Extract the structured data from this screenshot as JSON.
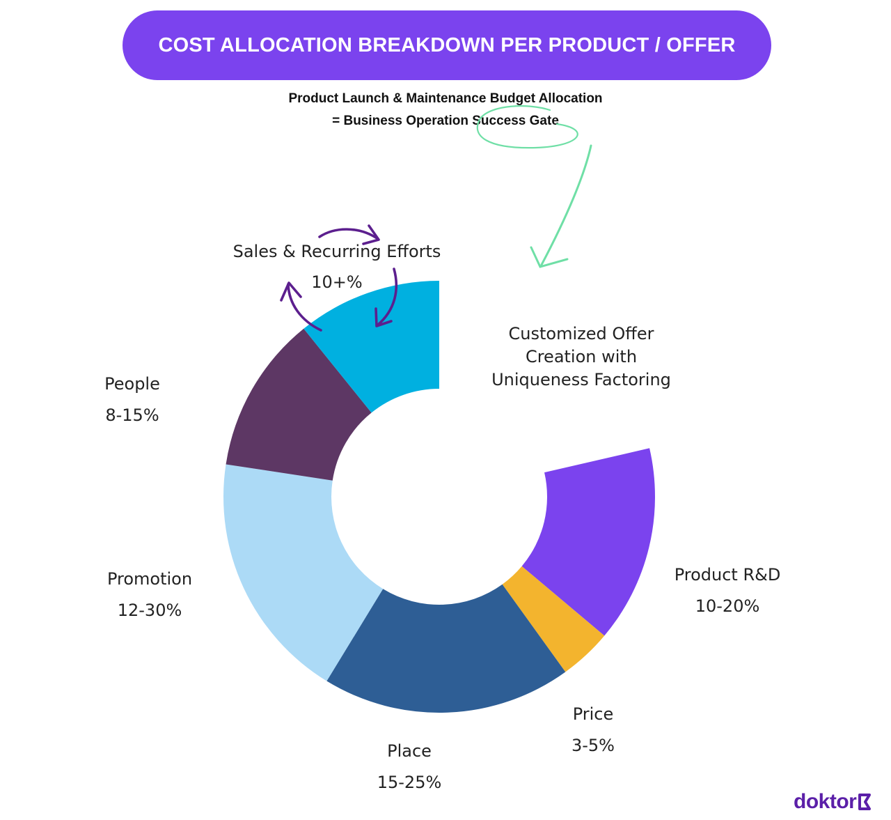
{
  "banner": {
    "title": "COST ALLOCATION BREAKDOWN PER PRODUCT / OFFER",
    "color": "#7b43ee"
  },
  "subtitle": {
    "line1": "Product Launch & Maintenance Budget Allocation",
    "line2": "= Business Operation Success Gate"
  },
  "center_label": {
    "line1": "Customized Offer",
    "line2": "Creation with",
    "line3": "Uniqueness Factoring"
  },
  "annotation_color": "#6fdfa6",
  "arrow_color": "#5c1f8e",
  "logo": {
    "text": "doktor",
    "icon": "doktor-k-logo-icon"
  },
  "chart_data": {
    "type": "donut",
    "title": "COST ALLOCATION BREAKDOWN PER PRODUCT / OFFER",
    "start": "12 o'clock, clockwise; top-right quarter left open",
    "segments": [
      {
        "name": "Product R&D",
        "range": "10-20%",
        "value": 15,
        "color": "#7b43ee"
      },
      {
        "name": "Price",
        "range": "3-5%",
        "value": 4,
        "color": "#f3b42e"
      },
      {
        "name": "Place",
        "range": "15-25%",
        "value": 19,
        "color": "#2e5e95"
      },
      {
        "name": "Promotion",
        "range": "12-30%",
        "value": 19,
        "color": "#acdaf6"
      },
      {
        "name": "People",
        "range": "8-15%",
        "value": 12,
        "color": "#5d3764"
      },
      {
        "name": "Sales & Recurring Efforts",
        "range": "10+%",
        "value": 11,
        "color": "#00b0e0"
      }
    ],
    "gap_label": "Customized Offer Creation with Uniqueness Factoring"
  }
}
